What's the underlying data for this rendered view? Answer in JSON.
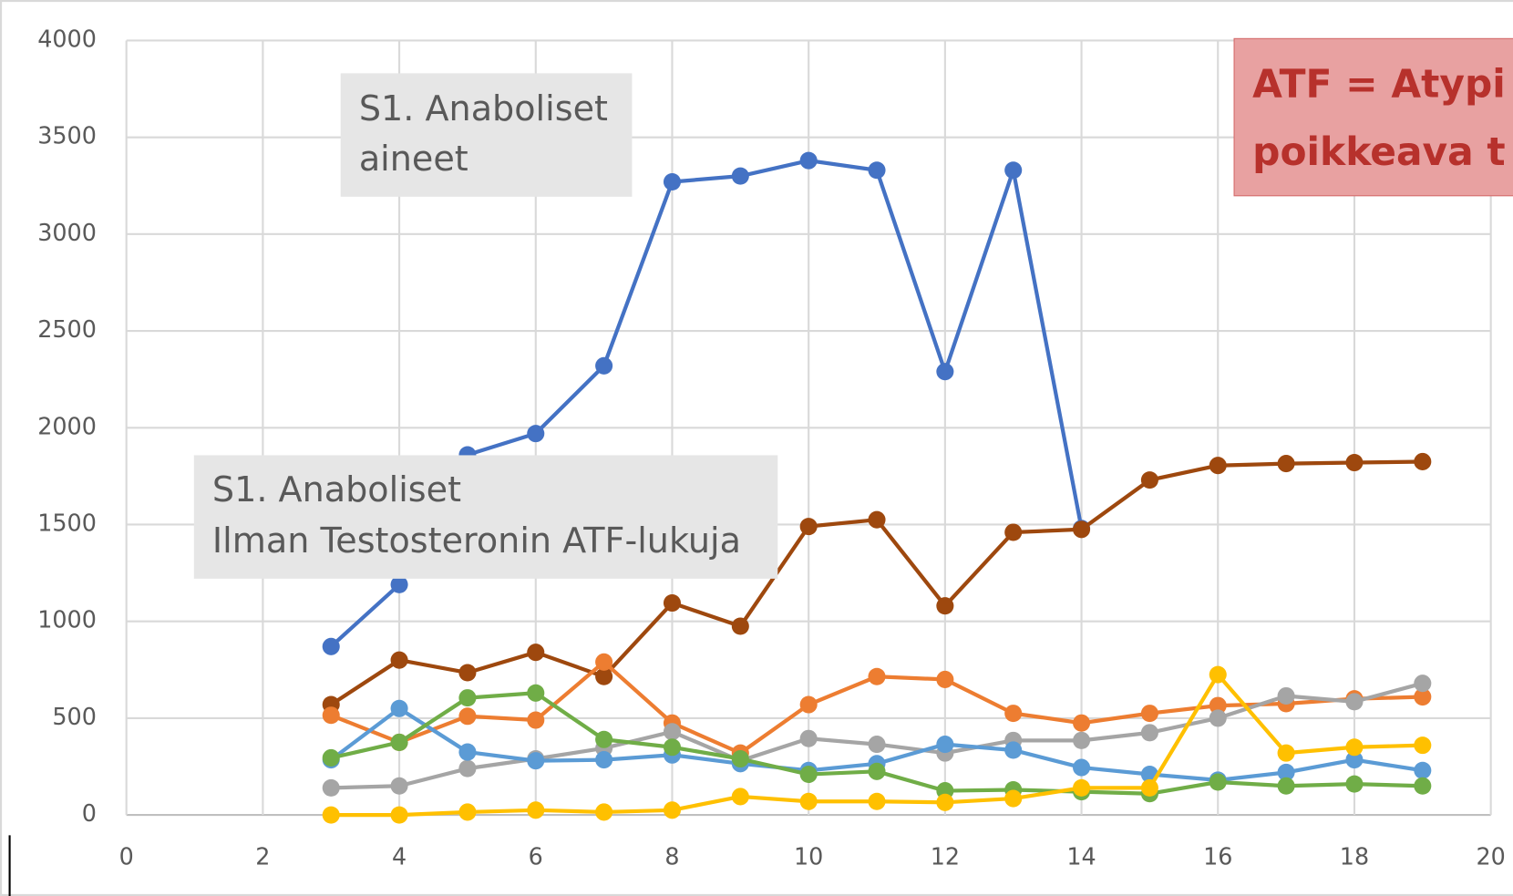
{
  "chart_data": {
    "type": "line",
    "x": [
      3,
      4,
      5,
      6,
      7,
      8,
      9,
      10,
      11,
      12,
      13,
      14,
      15,
      16,
      17,
      18,
      19
    ],
    "series": [
      {
        "color": "#4472c4",
        "values": [
          870,
          1190,
          1860,
          1970,
          2320,
          3270,
          3300,
          3380,
          3330,
          2290,
          3330,
          1480,
          null,
          null,
          null,
          null,
          null
        ]
      },
      {
        "color": "#9e480e",
        "values": [
          570,
          800,
          735,
          840,
          715,
          1095,
          975,
          1490,
          1525,
          1080,
          1460,
          1475,
          1730,
          1805,
          1815,
          1820,
          1825
        ]
      },
      {
        "color": "#ed7d31",
        "values": [
          515,
          375,
          510,
          490,
          790,
          475,
          320,
          570,
          715,
          700,
          525,
          475,
          525,
          565,
          575,
          600,
          610
        ]
      },
      {
        "color": "#a5a5a5",
        "values": [
          140,
          150,
          240,
          290,
          345,
          430,
          280,
          395,
          365,
          320,
          385,
          385,
          425,
          500,
          615,
          585,
          680
        ]
      },
      {
        "color": "#5b9bd5",
        "values": [
          285,
          550,
          325,
          280,
          285,
          310,
          265,
          230,
          265,
          365,
          335,
          245,
          210,
          180,
          220,
          285,
          230
        ]
      },
      {
        "color": "#70ad47",
        "values": [
          295,
          375,
          605,
          630,
          390,
          350,
          290,
          210,
          225,
          125,
          130,
          120,
          110,
          170,
          150,
          160,
          150
        ]
      },
      {
        "color": "#ffc000",
        "values": [
          0,
          0,
          15,
          25,
          15,
          25,
          95,
          70,
          70,
          65,
          85,
          140,
          140,
          725,
          320,
          350,
          360
        ]
      }
    ],
    "xlim": [
      0,
      20
    ],
    "xticks": [
      0,
      2,
      4,
      6,
      8,
      10,
      12,
      14,
      16,
      18,
      20
    ],
    "ylim": [
      0,
      4000
    ],
    "yticks": [
      0,
      500,
      1000,
      1500,
      2000,
      2500,
      3000,
      3500,
      4000
    ],
    "grid": true,
    "annotations": [
      {
        "lines": [
          "S1. Anaboliset",
          "aineet"
        ]
      },
      {
        "lines": [
          "S1. Anaboliset",
          "Ilman Testosteronin ATF-lukuja"
        ]
      },
      {
        "lines": [
          "ATF = Atypi",
          "poikkeava t"
        ]
      }
    ]
  }
}
